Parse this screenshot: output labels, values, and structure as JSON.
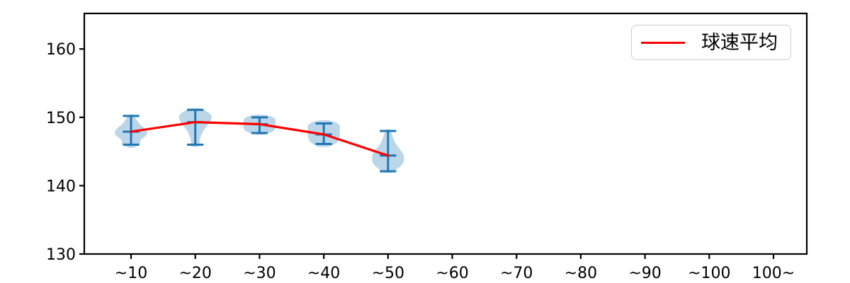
{
  "chart_data": {
    "type": "violin",
    "title": "",
    "xlabel": "",
    "ylabel": "",
    "grid": false,
    "legend": {
      "label": "球速平均",
      "position": "upper right",
      "line_color": "#ff0000"
    },
    "categories": [
      "~10",
      "~20",
      "~30",
      "~40",
      "~50",
      "~60",
      "~70",
      "~80",
      "~90",
      "~100",
      "100~"
    ],
    "yticks": [
      130,
      140,
      150,
      160
    ],
    "ylim": [
      130,
      165.2
    ],
    "colors": {
      "violin_fill": "#bcd6e9",
      "violin_lines": "#1f77b4",
      "mean_line": "#ff0000",
      "axis": "#000000"
    },
    "violins": [
      {
        "category": "~10",
        "position": 1,
        "min": 146.0,
        "max": 150.2,
        "mean": 147.9,
        "profile": [
          [
            150.4,
            0.1
          ],
          [
            150.1,
            0.22
          ],
          [
            149.6,
            0.36
          ],
          [
            149.0,
            0.55
          ],
          [
            148.4,
            0.85
          ],
          [
            148.0,
            0.98
          ],
          [
            147.6,
            1.0
          ],
          [
            147.2,
            0.88
          ],
          [
            146.9,
            0.7
          ],
          [
            146.6,
            0.58
          ],
          [
            146.3,
            0.58
          ],
          [
            146.0,
            0.5
          ],
          [
            145.7,
            0.28
          ],
          [
            145.55,
            0.12
          ]
        ]
      },
      {
        "category": "~20",
        "position": 2,
        "min": 146.0,
        "max": 151.1,
        "mean": 149.3,
        "profile": [
          [
            151.3,
            0.25
          ],
          [
            151.0,
            0.6
          ],
          [
            150.6,
            0.88
          ],
          [
            150.2,
            1.0
          ],
          [
            149.8,
            1.0
          ],
          [
            149.4,
            0.92
          ],
          [
            148.9,
            0.78
          ],
          [
            148.4,
            0.62
          ],
          [
            147.9,
            0.48
          ],
          [
            147.4,
            0.38
          ],
          [
            146.9,
            0.3
          ],
          [
            146.4,
            0.27
          ],
          [
            146.0,
            0.26
          ],
          [
            145.7,
            0.18
          ]
        ]
      },
      {
        "category": "~30",
        "position": 3,
        "min": 147.7,
        "max": 150.0,
        "mean": 149.0,
        "profile": [
          [
            150.35,
            0.3
          ],
          [
            150.1,
            0.75
          ],
          [
            149.8,
            0.95
          ],
          [
            149.4,
            1.0
          ],
          [
            149.0,
            1.0
          ],
          [
            148.6,
            1.0
          ],
          [
            148.2,
            0.95
          ],
          [
            147.9,
            0.8
          ],
          [
            147.6,
            0.45
          ],
          [
            147.45,
            0.2
          ]
        ]
      },
      {
        "category": "~40",
        "position": 4,
        "min": 146.1,
        "max": 149.1,
        "mean": 147.5,
        "profile": [
          [
            149.55,
            0.3
          ],
          [
            149.3,
            0.7
          ],
          [
            149.0,
            0.92
          ],
          [
            148.6,
            1.0
          ],
          [
            148.1,
            1.0
          ],
          [
            147.6,
            1.0
          ],
          [
            147.1,
            0.98
          ],
          [
            146.7,
            0.92
          ],
          [
            146.3,
            0.8
          ],
          [
            146.0,
            0.6
          ],
          [
            145.7,
            0.3
          ]
        ]
      },
      {
        "category": "~50",
        "position": 5,
        "min": 142.1,
        "max": 148.0,
        "mean": 144.4,
        "profile": [
          [
            148.25,
            0.1
          ],
          [
            147.9,
            0.18
          ],
          [
            147.4,
            0.26
          ],
          [
            146.9,
            0.33
          ],
          [
            146.4,
            0.42
          ],
          [
            145.9,
            0.55
          ],
          [
            145.4,
            0.72
          ],
          [
            144.9,
            0.88
          ],
          [
            144.4,
            0.98
          ],
          [
            144.0,
            1.0
          ],
          [
            143.5,
            0.97
          ],
          [
            143.0,
            0.85
          ],
          [
            142.6,
            0.65
          ],
          [
            142.2,
            0.4
          ],
          [
            141.9,
            0.18
          ]
        ]
      }
    ],
    "mean_line": {
      "name": "球速平均",
      "color": "#ff0000",
      "categories": [
        "~10",
        "~20",
        "~30",
        "~40",
        "~50"
      ],
      "positions": [
        1,
        2,
        3,
        4,
        5
      ],
      "values": [
        147.9,
        149.3,
        149.0,
        147.5,
        144.4
      ]
    }
  }
}
